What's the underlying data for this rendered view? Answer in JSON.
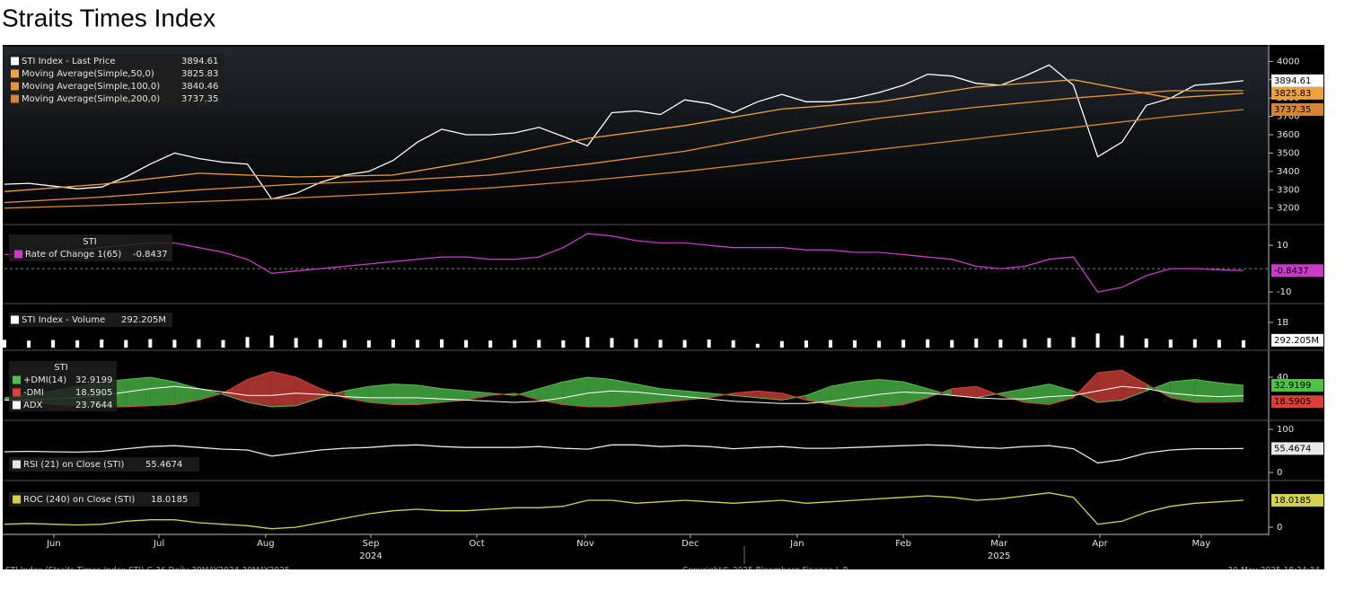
{
  "title": "Straits Times Index",
  "footer": {
    "left": "STI Index (Straits Times Index STI) G 36 Daily 30MAY2024-30MAY2025",
    "center": "Copyright© 2025 Bloomberg Finance L.P.",
    "right": "30-May-2025 18:24:34"
  },
  "chart_data": {
    "type": "panels",
    "x": [
      0,
      1,
      2,
      3,
      4,
      5,
      6,
      7,
      8,
      9,
      10,
      11,
      12,
      13,
      14,
      15,
      16,
      17,
      18,
      19,
      20,
      21,
      22,
      23,
      24,
      25,
      26,
      27,
      28,
      29,
      30,
      31,
      32,
      33,
      34,
      35,
      36,
      37,
      38,
      39,
      40,
      41,
      42,
      43,
      44,
      45,
      46,
      47,
      48,
      49,
      50,
      51
    ],
    "xlim": [
      0,
      52
    ],
    "xticks": [
      {
        "value": 2.03,
        "label": "Jun"
      },
      {
        "value": 6.36,
        "label": "Jul"
      },
      {
        "value": 10.75,
        "label": "Aug"
      },
      {
        "value": 15.08,
        "label": "Sep"
      },
      {
        "value": 19.44,
        "label": "Oct"
      },
      {
        "value": 23.91,
        "label": "Nov"
      },
      {
        "value": 28.23,
        "label": "Dec"
      },
      {
        "value": 32.63,
        "label": "Jan"
      },
      {
        "value": 37.0,
        "label": "Feb"
      },
      {
        "value": 40.94,
        "label": "Mar"
      },
      {
        "value": 45.09,
        "label": "Apr"
      },
      {
        "value": 49.26,
        "label": "May"
      }
    ],
    "year_ticks": [
      {
        "value": 15.08,
        "label": "2024"
      },
      {
        "value": 40.94,
        "label": "2025"
      }
    ],
    "panels": [
      {
        "type": "line",
        "ylim": [
          3120,
          4080
        ],
        "yticks": [
          3200,
          3300,
          3400,
          3500,
          3600,
          3700,
          3800,
          3900,
          4000
        ],
        "series": [
          {
            "name": "STI Index - Last Price",
            "color": "#ffffff",
            "badge": true,
            "values": [
              3330,
              3335,
              3320,
              3305,
              3315,
              3370,
              3440,
              3500,
              3470,
              3450,
              3440,
              3250,
              3280,
              3340,
              3380,
              3400,
              3460,
              3560,
              3630,
              3600,
              3600,
              3610,
              3640,
              3590,
              3540,
              3720,
              3730,
              3710,
              3790,
              3770,
              3720,
              3780,
              3820,
              3780,
              3780,
              3800,
              3830,
              3870,
              3930,
              3920,
              3880,
              3870,
              3920,
              3980,
              3870,
              3480,
              3560,
              3760,
              3800,
              3870,
              3880,
              3894.61
            ]
          },
          {
            "name": "Moving Average(Simple,50,0)",
            "color": "#f0a040",
            "badge": true,
            "x": [
              0,
              4,
              8,
              12,
              16,
              20,
              24,
              28,
              32,
              36,
              40,
              44,
              48,
              51
            ],
            "values": [
              3290,
              3330,
              3390,
              3370,
              3380,
              3470,
              3580,
              3650,
              3740,
              3780,
              3860,
              3900,
              3800,
              3825.83
            ]
          },
          {
            "name": "Moving Average(Simple,100,0)",
            "color": "#e8923a",
            "badge": false,
            "x": [
              0,
              4,
              8,
              12,
              16,
              20,
              24,
              28,
              32,
              36,
              40,
              44,
              48,
              51
            ],
            "values": [
              3230,
              3260,
              3300,
              3330,
              3350,
              3380,
              3440,
              3510,
              3610,
              3690,
              3750,
              3800,
              3840,
              3840.46
            ]
          },
          {
            "name": "Moving Average(Simple,200,0)",
            "color": "#d68632",
            "badge": true,
            "x": [
              0,
              4,
              8,
              12,
              16,
              20,
              24,
              28,
              32,
              36,
              40,
              44,
              48,
              51
            ],
            "values": [
              3200,
              3215,
              3235,
              3255,
              3280,
              3310,
              3350,
              3400,
              3460,
              3520,
              3580,
              3640,
              3700,
              3737.35
            ]
          }
        ]
      },
      {
        "type": "line",
        "header": "STI",
        "ylim": [
          -13.8,
          18.1
        ],
        "yticks": [
          10,
          -10
        ],
        "reference_line": 0,
        "series": [
          {
            "name": "Rate of Change 1(65)",
            "color": "#c83cc8",
            "badge": true,
            "values": [
              6,
              6.5,
              7,
              8,
              9,
              10,
              11,
              11,
              9,
              7,
              4,
              -2,
              -1,
              0,
              1,
              2,
              3,
              4,
              5,
              5,
              4,
              4,
              5,
              9,
              15,
              14,
              12,
              11,
              11,
              10,
              9,
              9,
              9,
              8,
              8,
              7,
              7,
              6,
              5,
              4,
              1,
              0,
              1,
              4,
              5,
              -10,
              -8,
              -3,
              0,
              0,
              -0.5,
              -0.8437
            ]
          }
        ]
      },
      {
        "type": "bar",
        "ylim": [
          0,
          1680
        ],
        "yticks": [
          {
            "value": 1000,
            "label": "1B"
          }
        ],
        "series": [
          {
            "name": "STI Index - Volume",
            "color": "#ffffff",
            "badge": true,
            "last_value_label": "292.205M",
            "values": [
              310,
              280,
              300,
              290,
              320,
              300,
              340,
              310,
              330,
              300,
              420,
              480,
              380,
              330,
              300,
              290,
              320,
              310,
              330,
              300,
              280,
              300,
              310,
              290,
              420,
              380,
              340,
              310,
              300,
              320,
              290,
              150,
              260,
              280,
              300,
              290,
              270,
              310,
              330,
              300,
              360,
              320,
              340,
              380,
              420,
              560,
              480,
              360,
              320,
              330,
              310,
              292.205
            ]
          }
        ]
      },
      {
        "type": "line",
        "header": "STI",
        "ylim": [
          4.6,
          62
        ],
        "yticks": [
          40
        ],
        "fill": [
          0,
          1
        ],
        "series": [
          {
            "name": "+DMI(14)",
            "color": "#4fc24a",
            "badge": true,
            "values": [
              22,
              25,
              28,
              32,
              36,
              38,
              40,
              36,
              30,
              25,
              18,
              14,
              15,
              22,
              28,
              32,
              34,
              33,
              30,
              28,
              26,
              24,
              30,
              36,
              40,
              38,
              34,
              30,
              28,
              26,
              24,
              22,
              20,
              24,
              32,
              36,
              38,
              36,
              30,
              24,
              22,
              26,
              30,
              34,
              28,
              18,
              20,
              28,
              36,
              38,
              35,
              32.9199
            ]
          },
          {
            "name": "-DMI",
            "color": "#d8403a",
            "badge": true,
            "values": [
              20,
              18,
              16,
              15,
              14,
              14,
              15,
              16,
              20,
              26,
              38,
              45,
              40,
              30,
              22,
              18,
              16,
              16,
              18,
              20,
              24,
              26,
              20,
              16,
              14,
              14,
              16,
              18,
              20,
              22,
              26,
              28,
              26,
              20,
              16,
              14,
              14,
              16,
              22,
              30,
              32,
              24,
              18,
              16,
              22,
              44,
              46,
              34,
              22,
              18,
              18,
              18.5905
            ]
          },
          {
            "name": "ADX",
            "color": "#ffffff",
            "badge": false,
            "values": [
              20,
              20,
              21,
              22,
              24,
              27,
              30,
              32,
              30,
              27,
              24,
              24,
              26,
              25,
              23,
              22,
              22,
              22,
              21,
              20,
              19,
              18,
              19,
              22,
              26,
              28,
              27,
              25,
              23,
              21,
              19,
              18,
              17,
              17,
              19,
              22,
              25,
              27,
              26,
              24,
              22,
              21,
              21,
              23,
              24,
              28,
              32,
              30,
              26,
              24,
              23,
              23.7644
            ]
          }
        ]
      },
      {
        "type": "line",
        "ylim": [
          -12.5,
          116.7
        ],
        "yticks": [
          100,
          0
        ],
        "series": [
          {
            "name": "RSI (21)  on Close (STI)",
            "color": "#e8e8e8",
            "badge": true,
            "values": [
              48,
              49,
              48,
              47,
              49,
              55,
              60,
              62,
              58,
              54,
              52,
              38,
              45,
              52,
              56,
              58,
              62,
              64,
              60,
              58,
              58,
              58,
              60,
              56,
              54,
              64,
              64,
              60,
              62,
              60,
              55,
              58,
              60,
              56,
              56,
              58,
              60,
              62,
              64,
              62,
              58,
              56,
              60,
              62,
              55,
              22,
              30,
              45,
              52,
              55,
              55,
              55.4674
            ]
          }
        ]
      },
      {
        "type": "line",
        "ylim": [
          -3,
          30
        ],
        "yticks": [
          0
        ],
        "series": [
          {
            "name": "ROC (240)  on Close (STI)",
            "color": "#d6d250",
            "badge": true,
            "values": [
              2,
              2.5,
              2,
              1.5,
              2,
              4,
              5,
              5,
              3,
              2,
              1,
              -1,
              0,
              3,
              6,
              9,
              11,
              12,
              11,
              11,
              12,
              13,
              13,
              14,
              18,
              18,
              16,
              17,
              18,
              17,
              16,
              17,
              18,
              16,
              17,
              18,
              19,
              20,
              21,
              20,
              18,
              19,
              21,
              23,
              20,
              2,
              4,
              10,
              14,
              16,
              17,
              18.0185
            ]
          }
        ]
      }
    ]
  }
}
